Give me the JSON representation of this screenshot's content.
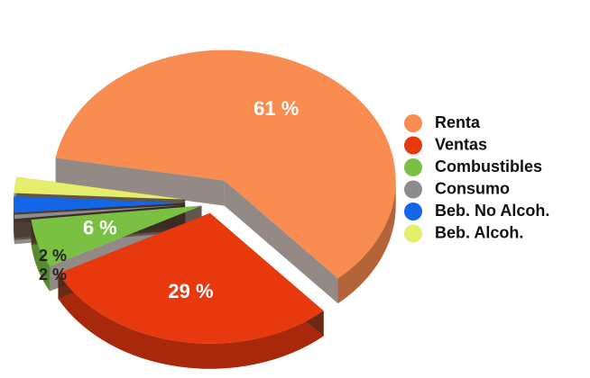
{
  "chart_data": {
    "type": "pie",
    "categories": [
      "Renta",
      "Ventas",
      "Combustibles",
      "Consumo",
      "Beb. No Alcoh.",
      "Beb. Alcoh."
    ],
    "values": [
      61,
      29,
      6,
      0.5,
      2,
      2
    ],
    "value_labels": [
      "61 %",
      "29 %",
      "6 %",
      null,
      "2 %",
      "2 %"
    ],
    "colors": [
      "#f98c50",
      "#e8380e",
      "#7ac143",
      "#8c8c8c",
      "#1466e8",
      "#e4ee6a"
    ],
    "legend": "right"
  }
}
